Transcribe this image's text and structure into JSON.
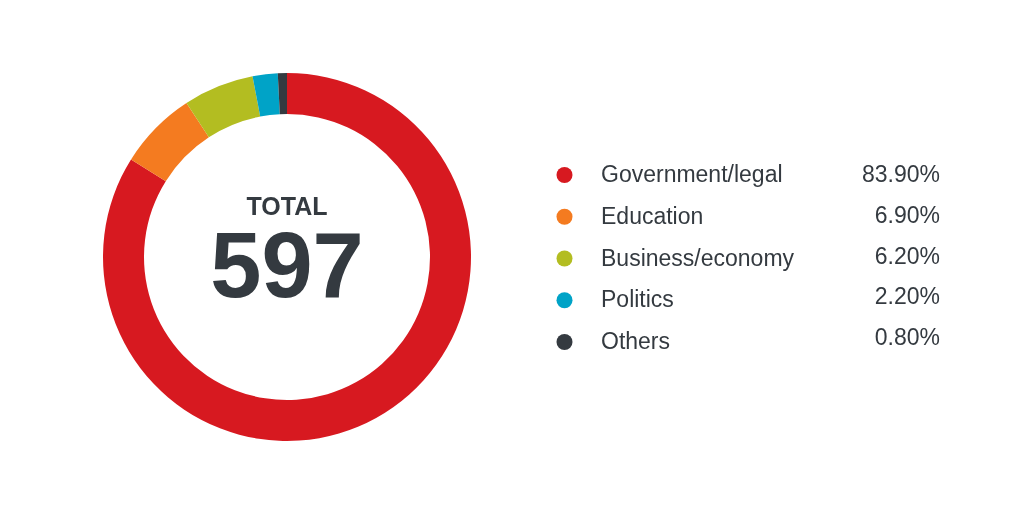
{
  "chart_data": {
    "type": "donut",
    "categories": [
      "Government/legal",
      "Education",
      "Business/economy",
      "Politics",
      "Others"
    ],
    "values": [
      83.9,
      6.9,
      6.2,
      2.2,
      0.8
    ],
    "colors": [
      "#d71920",
      "#f47b20",
      "#b3bd21",
      "#00a3c7",
      "#343a40"
    ],
    "value_labels": [
      "83.90%",
      "6.90%",
      "6.20%",
      "2.20%",
      "0.80%"
    ],
    "legend": "right",
    "annotations": [
      "TOTAL",
      "597"
    ]
  }
}
